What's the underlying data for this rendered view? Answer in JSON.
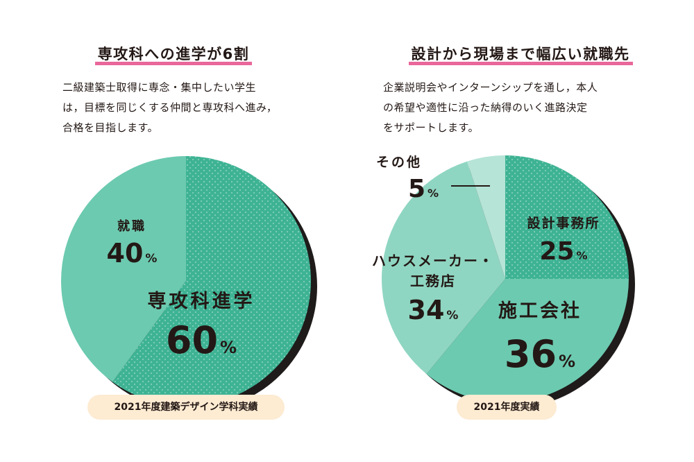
{
  "left": {
    "title": "専攻科への進学が6割",
    "description": [
      "二級建築士取得に専念・集中したい学生",
      "は，目標を同じくする仲間と専攻科へ進み，",
      "合格を目指します。"
    ],
    "badge": "2021年度建築デザイン学科実績"
  },
  "right": {
    "title": "設計から現場まで幅広い就職先",
    "description": [
      "企業説明会やインターンシップを通し，本人",
      "の希望や適性に沿った納得のいく進路決定",
      "をサポートします。"
    ],
    "badge": "2021年度実績"
  },
  "chart_data": [
    {
      "type": "pie",
      "start": "12 o'clock, clockwise",
      "slices": [
        {
          "label": "専攻科進学",
          "value": 60,
          "display": "60",
          "color": "#3eb394",
          "dotted": true
        },
        {
          "label": "就職",
          "value": 40,
          "display": "40",
          "color": "#6ccab0",
          "dotted": false
        }
      ],
      "unit": "%"
    },
    {
      "type": "pie",
      "start": "12 o'clock, clockwise",
      "slices": [
        {
          "label": "設計事務所",
          "value": 25,
          "display": "25",
          "color": "#3eb394",
          "dotted": true
        },
        {
          "label": "施工会社",
          "value": 36,
          "display": "36",
          "color": "#6ccab0",
          "dotted": false
        },
        {
          "label": "ハウスメーカー・工務店",
          "lines": [
            "ハウスメーカー・",
            "工務店"
          ],
          "value": 34,
          "display": "34",
          "color": "#8fd6c2",
          "dotted": false
        },
        {
          "label": "その他",
          "value": 5,
          "display": "5",
          "color": "#b6e4d7",
          "dotted": false
        }
      ],
      "unit": "%"
    }
  ]
}
